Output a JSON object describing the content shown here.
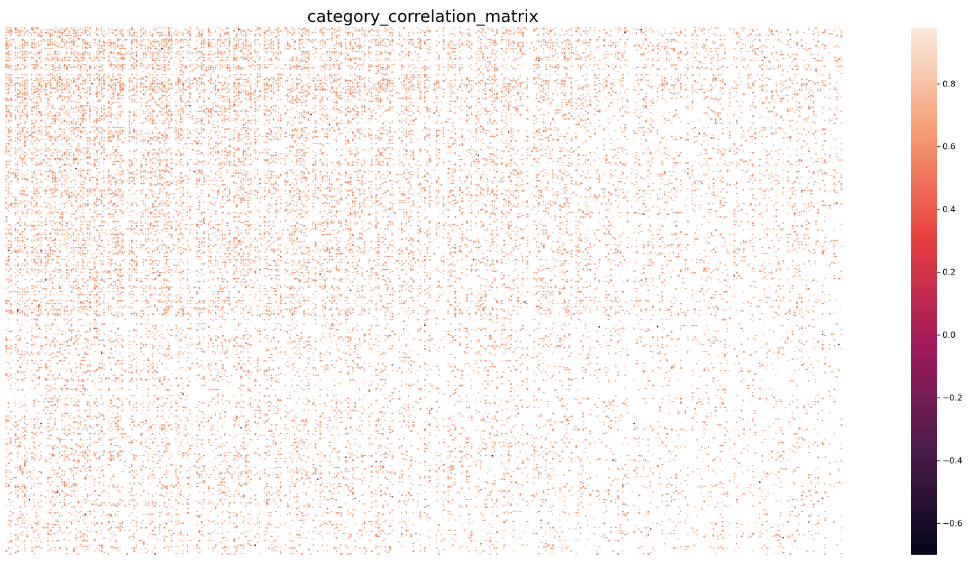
{
  "chart_data": {
    "type": "heatmap",
    "title": "category_correlation_matrix",
    "xlabel": "",
    "ylabel": "",
    "x_tick_labels": [],
    "y_tick_labels": [],
    "colorbar": {
      "range": [
        -0.7,
        0.98
      ],
      "ticks": [
        0.8,
        0.6,
        0.4,
        0.2,
        0.0,
        -0.2,
        -0.4,
        -0.6
      ],
      "tick_labels": [
        "0.8",
        "0.6",
        "0.4",
        "0.2",
        "0.0",
        "−0.2",
        "−0.4",
        "−0.6"
      ],
      "colormap": "rocket",
      "stops": [
        "#03051a",
        "#4c1d4b",
        "#a11a5b",
        "#e83f3f",
        "#f69c73",
        "#faebdd"
      ]
    },
    "matrix": {
      "values_hidden": true,
      "dominant_nonzero_value": 0.55,
      "dominant_color": "#f08a5d",
      "empty_cell_color": "#ffffff",
      "rare_negative_value": -0.7,
      "density_top_left": "high",
      "density_right": "low"
    }
  }
}
